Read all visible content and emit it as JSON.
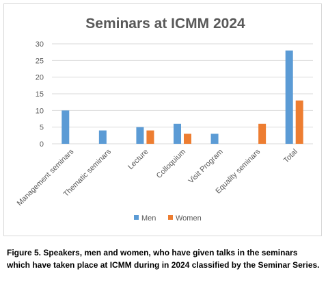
{
  "chart_data": {
    "type": "bar",
    "title": "Seminars at ICMM 2024",
    "categories": [
      "Management seminars",
      "Thematic seminars",
      "Lecture",
      "Colloquium",
      "Visit Program",
      "Equality seminars",
      "Total"
    ],
    "series": [
      {
        "name": "Men",
        "color": "#5b9bd5",
        "values": [
          10,
          4,
          5,
          6,
          3,
          0,
          28
        ]
      },
      {
        "name": "Women",
        "color": "#ed7d31",
        "values": [
          0,
          0,
          4,
          3,
          0,
          6,
          13
        ]
      }
    ],
    "ylim": [
      0,
      30
    ],
    "yticks": [
      0,
      5,
      10,
      15,
      20,
      25,
      30
    ],
    "grid": true,
    "legend": "bottom",
    "xlabel": "",
    "ylabel": ""
  },
  "caption": "Figure 5. Speakers, men and women, who have given talks in the seminars which have taken place at ICMM during in 2024 classified by the Seminar Series."
}
